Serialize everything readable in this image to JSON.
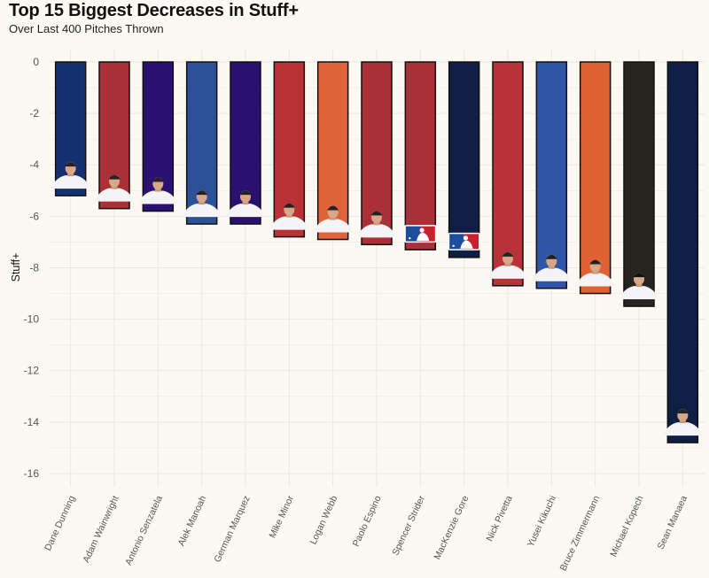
{
  "chart_data": {
    "type": "bar",
    "title": "Top 15 Biggest Decreases in Stuff+",
    "subtitle": "Over Last 400 Pitches Thrown",
    "xlabel": "",
    "ylabel": "Stuff+",
    "ylim": [
      -16.6,
      0.4
    ],
    "yticks": [
      0,
      -2,
      -4,
      -6,
      -8,
      -10,
      -12,
      -14,
      -16
    ],
    "grid": true,
    "legend": "none",
    "categories": [
      "Dane Dunning",
      "Adam Wainwright",
      "Antonio Senzatela",
      "Alek Manoah",
      "German Marquez",
      "Mike Minor",
      "Logan Webb",
      "Paolo Espino",
      "Spencer Strider",
      "MacKenzie Gore",
      "Nick Pivetta",
      "Yusei Kikuchi",
      "Bruce Zimmermann",
      "Michael Kopech",
      "Sean Manaea"
    ],
    "values": [
      -5.2,
      -5.7,
      -5.8,
      -6.3,
      -6.3,
      -6.8,
      -6.9,
      -7.1,
      -7.3,
      -7.6,
      -8.7,
      -8.8,
      -9.0,
      -9.5,
      -14.8
    ],
    "bar_colors": [
      "#14306e",
      "#a93036",
      "#2a1070",
      "#2c5199",
      "#2a1070",
      "#ba3236",
      "#e0643a",
      "#a93036",
      "#a93036",
      "#0f1e44",
      "#b73338",
      "#2e55a8",
      "#df6233",
      "#27251f",
      "#0f1e44"
    ],
    "bar_images": [
      "player-headshot",
      "player-headshot",
      "player-headshot",
      "player-headshot",
      "player-headshot",
      "player-headshot",
      "player-headshot",
      "player-headshot",
      "mlb-logo",
      "mlb-logo",
      "player-headshot",
      "player-headshot",
      "player-headshot",
      "player-headshot",
      "player-headshot"
    ],
    "colors": {
      "background": "#fcf9f2",
      "grid": "#ece8df",
      "bar_outline": "#111111"
    }
  }
}
